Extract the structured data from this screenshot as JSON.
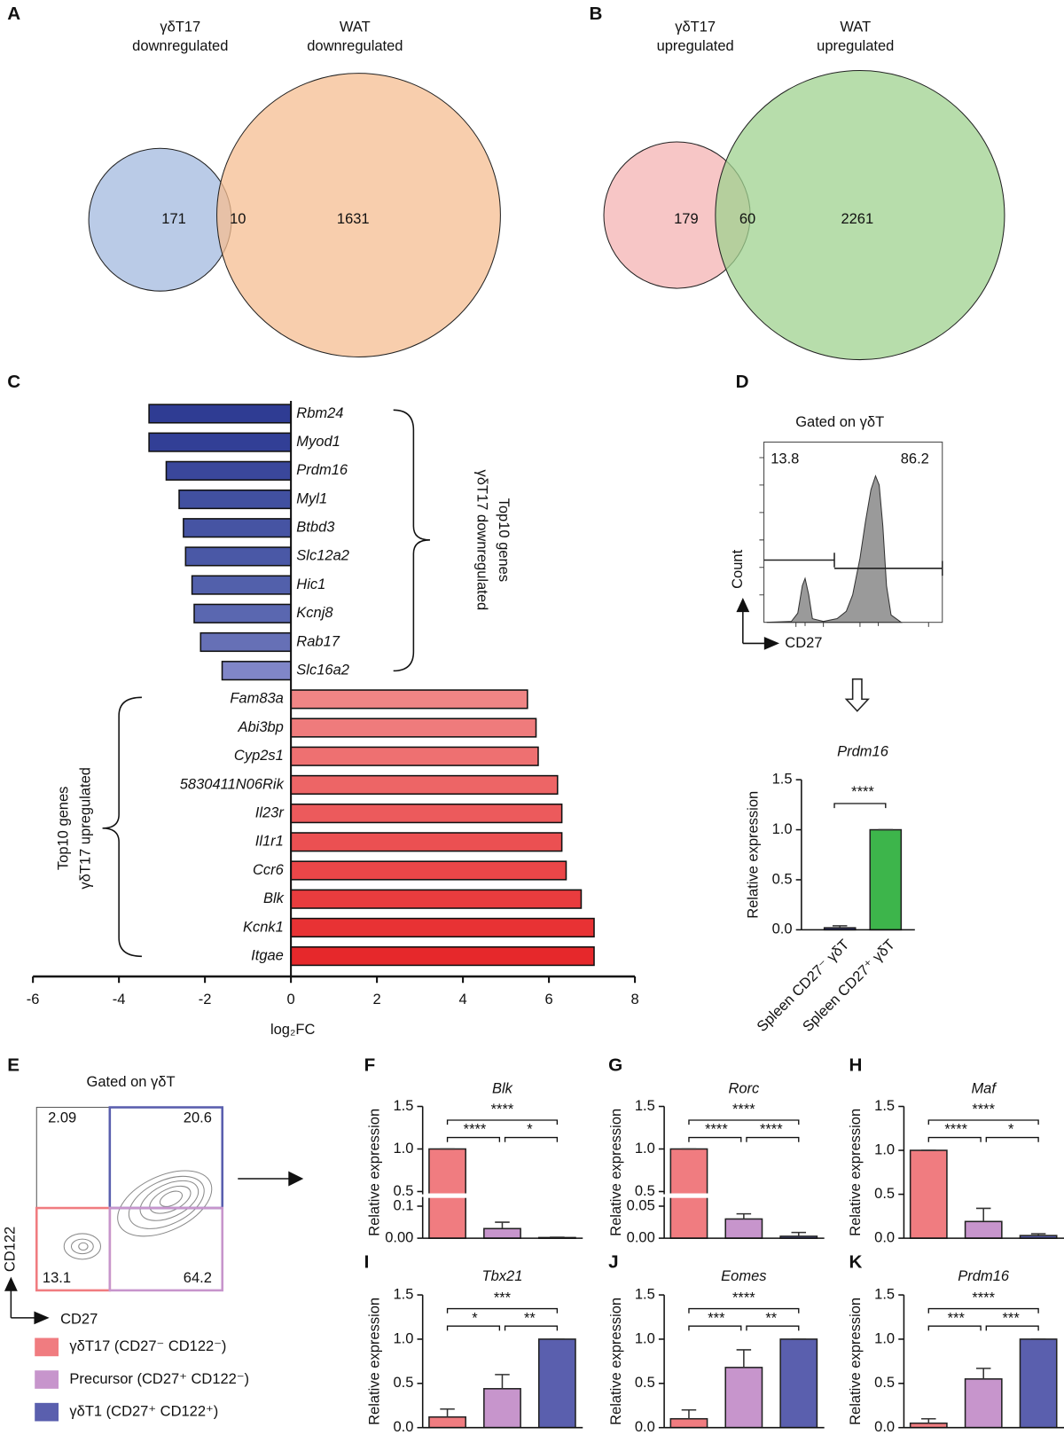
{
  "chart_data": [
    {
      "type": "venn",
      "panel": "A",
      "sets": [
        {
          "name": [
            "γδT17",
            "downregulated"
          ],
          "color": "#a3badf"
        },
        {
          "name": [
            "WAT",
            "downregulated"
          ],
          "color": "#f6bd92"
        }
      ],
      "values": [
        171,
        10,
        1631
      ]
    },
    {
      "type": "venn",
      "panel": "B",
      "sets": [
        {
          "name": [
            "γδT17",
            "upregulated"
          ],
          "color": "#f4b3b3"
        },
        {
          "name": [
            "WAT",
            "upregulated"
          ],
          "color": "#9fd28f"
        }
      ],
      "values": [
        179,
        60,
        2261
      ]
    },
    {
      "type": "hbar",
      "panel": "C",
      "categories": [
        "Rbm24",
        "Myod1",
        "Prdm16",
        "Myl1",
        "Btbd3",
        "Slc12a2",
        "Hic1",
        "Kcnj8",
        "Rab17",
        "Slc16a2",
        "Fam83a",
        "Abi3bp",
        "Cyp2s1",
        "5830411N06Rik",
        "Il23r",
        "Il1r1",
        "Ccr6",
        "Blk",
        "Kcnk1",
        "Itgae"
      ],
      "values": [
        -3.3,
        -3.3,
        -2.9,
        -2.6,
        -2.5,
        -2.45,
        -2.3,
        -2.25,
        -2.1,
        -1.6,
        5.5,
        5.7,
        5.75,
        6.2,
        6.3,
        6.3,
        6.4,
        6.75,
        7.05,
        7.05
      ],
      "colors": [
        "#2f3c93",
        "#323f96",
        "#3a479b",
        "#4150a0",
        "#4654a3",
        "#4a58a6",
        "#5260ab",
        "#5a67b0",
        "#6670b6",
        "#8086c8",
        "#f08585",
        "#ef7b7c",
        "#ee7071",
        "#ed6566",
        "#ec5a5c",
        "#eb5052",
        "#ea4648",
        "#e93c3e",
        "#e83234",
        "#e6282b"
      ],
      "xlim": [
        -6,
        8
      ],
      "xticks": [
        -6,
        -4,
        -2,
        0,
        2,
        4,
        6,
        8
      ],
      "xlabel": "log₂FC",
      "brackets": [
        [
          "Top10 genes",
          "γδT17 downregulated"
        ],
        [
          "Top10 genes",
          "γδT17 upregulated"
        ]
      ]
    },
    {
      "type": "flow-histogram",
      "panel": "D",
      "title": "Gated on γδT",
      "gates": [
        13.8,
        86.2
      ],
      "xlabel": "CD27",
      "ylabel": "Count"
    },
    {
      "type": "bar",
      "title": "Prdm16",
      "categories": [
        "Spleen CD27⁻ γδT",
        "Spleen CD27⁺ γδT"
      ],
      "values": [
        0.02,
        1.0
      ],
      "errors": [
        0.02,
        0
      ],
      "colors": [
        "#3b3f8f",
        "#3db54b"
      ],
      "ylim": [
        0,
        1.5
      ],
      "yticks": [
        {
          "value": 0,
          "label": "0.0"
        },
        0.5,
        {
          "value": 1,
          "label": "1.0"
        },
        1.5
      ],
      "ylabel": "Relative expression",
      "significance": [
        "****"
      ]
    },
    {
      "type": "flow-contour",
      "panel": "E",
      "title": "Gated on γδT",
      "quadrants": [
        2.09,
        20.6,
        13.1,
        64.2
      ],
      "xlabel": "CD27",
      "ylabel": "CD122",
      "series": [
        {
          "name": "γδT17 (CD27⁻ CD122⁻)",
          "color": "#f07c80"
        },
        {
          "name": "Precursor (CD27⁺ CD122⁻)",
          "color": "#c795cc"
        },
        {
          "name": "γδT1 (CD27⁺ CD122⁺)",
          "color": "#5a5fae"
        }
      ]
    },
    {
      "type": "bar",
      "panel": "F",
      "title": "Blk",
      "values": [
        1.0,
        0.03,
        0.002
      ],
      "errors": [
        0,
        0.02,
        0.001
      ],
      "colors": [
        "#f07c80",
        "#c795cc",
        "#5a5fae"
      ],
      "ylim": [
        0,
        1.5
      ],
      "y_segments": [
        [
          0,
          0.12
        ],
        [
          0.5,
          1.5
        ]
      ],
      "yticks": [
        {
          "value": 0,
          "label": "0.00"
        },
        0.1,
        0.5,
        {
          "value": 1,
          "label": "1.0"
        },
        1.5
      ],
      "ylabel": "Relative expression",
      "significance": [
        "****",
        "****",
        "*"
      ]
    },
    {
      "type": "bar",
      "panel": "G",
      "title": "Rorc",
      "values": [
        1.0,
        0.03,
        0.003
      ],
      "errors": [
        0,
        0.008,
        0.006
      ],
      "colors": [
        "#f07c80",
        "#c795cc",
        "#5a5fae"
      ],
      "ylim": [
        0,
        1.5
      ],
      "y_segments": [
        [
          0,
          0.06
        ],
        [
          0.5,
          1.5
        ]
      ],
      "yticks": [
        {
          "value": 0,
          "label": "0.00"
        },
        0.05,
        0.5,
        {
          "value": 1,
          "label": "1.0"
        },
        1.5
      ],
      "ylabel": "Relative expression",
      "significance": [
        "****",
        "****",
        "****"
      ]
    },
    {
      "type": "bar",
      "panel": "H",
      "title": "Maf",
      "values": [
        1.0,
        0.19,
        0.03
      ],
      "errors": [
        0,
        0.15,
        0.02
      ],
      "colors": [
        "#f07c80",
        "#c795cc",
        "#5a5fae"
      ],
      "ylim": [
        0,
        1.5
      ],
      "yticks": [
        {
          "value": 0,
          "label": "0.0"
        },
        0.5,
        {
          "value": 1,
          "label": "1.0"
        },
        1.5
      ],
      "ylabel": "Relative expression",
      "significance": [
        "****",
        "****",
        "*"
      ]
    },
    {
      "type": "bar",
      "panel": "I",
      "title": "Tbx21",
      "values": [
        0.12,
        0.44,
        1.0
      ],
      "errors": [
        0.09,
        0.16,
        0
      ],
      "colors": [
        "#f07c80",
        "#c795cc",
        "#5a5fae"
      ],
      "ylim": [
        0,
        1.5
      ],
      "yticks": [
        {
          "value": 0,
          "label": "0.0"
        },
        0.5,
        {
          "value": 1,
          "label": "1.0"
        },
        1.5
      ],
      "ylabel": "Relative expression",
      "significance": [
        "***",
        "*",
        "**"
      ]
    },
    {
      "type": "bar",
      "panel": "J",
      "title": "Eomes",
      "values": [
        0.1,
        0.68,
        1.0
      ],
      "errors": [
        0.1,
        0.2,
        0
      ],
      "colors": [
        "#f07c80",
        "#c795cc",
        "#5a5fae"
      ],
      "ylim": [
        0,
        1.5
      ],
      "yticks": [
        {
          "value": 0,
          "label": "0.0"
        },
        0.5,
        {
          "value": 1,
          "label": "1.0"
        },
        1.5
      ],
      "ylabel": "Relative expression",
      "significance": [
        "****",
        "***",
        "**"
      ]
    },
    {
      "type": "bar",
      "panel": "K",
      "title": "Prdm16",
      "values": [
        0.05,
        0.55,
        1.0
      ],
      "errors": [
        0.05,
        0.12,
        0
      ],
      "colors": [
        "#f07c80",
        "#c795cc",
        "#5a5fae"
      ],
      "ylim": [
        0,
        1.5
      ],
      "yticks": [
        {
          "value": 0,
          "label": "0.0"
        },
        0.5,
        {
          "value": 1,
          "label": "1.0"
        },
        1.5
      ],
      "ylabel": "Relative expression",
      "significance": [
        "****",
        "***",
        "***"
      ]
    }
  ]
}
